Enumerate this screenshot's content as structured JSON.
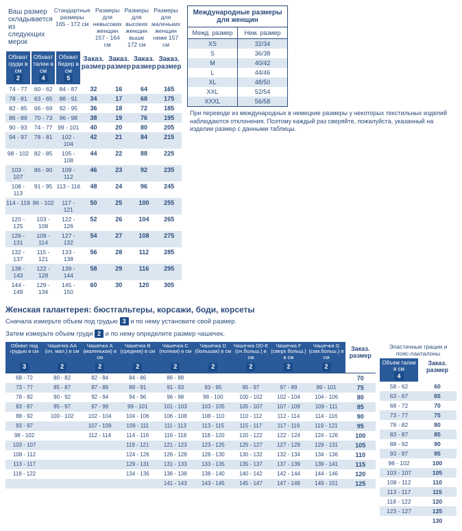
{
  "intro": "Ваш размер складывается из следующих мерок",
  "main": {
    "colgroups": [
      "Стандартные размеры\n165 - 172 см",
      "Размеры для невысоких женщин\n157 - 164 см",
      "Размеры для высоких женщин\nвыше 172 см",
      "Размеры для маленьких женщин\nниже 157 см"
    ],
    "order_label": "Заказ. размер",
    "measure_headers": [
      "Обхват груди в см",
      "Обхват талии в см",
      "Обхват бедер в см"
    ],
    "measure_badges": [
      "2",
      "4",
      "5"
    ],
    "rows": [
      [
        "74 - 77",
        "60 - 62",
        "84 - 87",
        "32",
        "16",
        "64",
        "165"
      ],
      [
        "78 - 81",
        "63 - 65",
        "88 - 91",
        "34",
        "17",
        "68",
        "175"
      ],
      [
        "82 - 85",
        "66 - 69",
        "92 - 95",
        "36",
        "18",
        "72",
        "185"
      ],
      [
        "86 - 89",
        "70 - 73",
        "96 - 98",
        "38",
        "19",
        "76",
        "195"
      ],
      [
        "90 - 93",
        "74 - 77",
        "99 - 101",
        "40",
        "20",
        "80",
        "205"
      ],
      [
        "94 - 97",
        "78 - 81",
        "102 - 104",
        "42",
        "21",
        "84",
        "215"
      ],
      [
        "98 - 102",
        "82 - 85",
        "105 - 108",
        "44",
        "22",
        "88",
        "225"
      ],
      [
        "103 - 107",
        "86 - 90",
        "109 - 112",
        "46",
        "23",
        "92",
        "235"
      ],
      [
        "108 - 113",
        "91 - 95",
        "113 - 116",
        "48",
        "24",
        "96",
        "245"
      ],
      [
        "114 - 119",
        "96 - 102",
        "117 - 121",
        "50",
        "25",
        "100",
        "255"
      ],
      [
        "120 - 125",
        "103 - 108",
        "122 - 126",
        "52",
        "26",
        "104",
        "265"
      ],
      [
        "126 - 131",
        "109 - 114",
        "127 - 132",
        "54",
        "27",
        "108",
        "275"
      ],
      [
        "132 - 137",
        "115 - 121",
        "133 - 138",
        "56",
        "28",
        "112",
        "285"
      ],
      [
        "138 - 143",
        "122 - 128",
        "139 - 144",
        "58",
        "29",
        "116",
        "295"
      ],
      [
        "144 - 149",
        "129 - 134",
        "145 - 150",
        "60",
        "30",
        "120",
        "305"
      ]
    ]
  },
  "intl": {
    "title": "Международные размеры для женщин",
    "h1": "Межд. размер",
    "h2": "Нем. размер",
    "rows": [
      [
        "XS",
        "32/34"
      ],
      [
        "S",
        "36/38"
      ],
      [
        "M",
        "40/42"
      ],
      [
        "L",
        "44/46"
      ],
      [
        "XL",
        "48/50"
      ],
      [
        "XXL",
        "52/54"
      ],
      [
        "XXXL",
        "56/58"
      ]
    ],
    "note": "При переводе из международных в немецкие размеры у некоторых текстильных изделий наблюдаются отклонения. Поэтому каждый раз сверяйте, пожалуйста, указанный на изделии размер с данными таблицы."
  },
  "section2": {
    "title": "Женская галантерея: бюстгальтеры, корсажи, боди, корсеты",
    "sub1_a": "Сначала измерьте объем под грудью ",
    "sub1_badge": "3",
    "sub1_b": " и по нему установите свой размер.",
    "sub2_a": "Затем измерьте объем груди ",
    "sub2_badge": "2",
    "sub2_b": " и по нему определите размер чашечек."
  },
  "bra": {
    "headers": [
      "Обхват под грудью в см",
      "Чашечка АА (оч. мал.) в см",
      "Чашечка А (маленькая) в см",
      "Чашечка В (средняя) в см",
      "Чашечка C (полная) в см",
      "Чашечка D (большая) в см",
      "Чашечка DD-Е (оч.больш.) в см",
      "Чашечка F (сверх больш.) в см",
      "Чашечка G (сам.больш.) в см"
    ],
    "badges": [
      "3",
      "2",
      "2",
      "2",
      "2",
      "2",
      "2",
      "2",
      "2"
    ],
    "order_label": "Заказ. размер",
    "rows": [
      [
        "68 - 72",
        "80 - 82",
        "82 - 84",
        "84 - 86",
        "86 - 88",
        "",
        "",
        "",
        "",
        "70"
      ],
      [
        "73 - 77",
        "85 - 87",
        "87 - 89",
        "89 - 91",
        "91 - 93",
        "93 - 95",
        "95 - 97",
        "97 - 99",
        "99 - 101",
        "75"
      ],
      [
        "78 - 82",
        "90 - 92",
        "92 - 94",
        "94 - 96",
        "96 - 98",
        "98 - 100",
        "100 - 102",
        "102 - 104",
        "104 - 106",
        "80"
      ],
      [
        "83 - 87",
        "95 - 97",
        "97 - 99",
        "99 - 101",
        "101 - 103",
        "103 - 105",
        "105 - 107",
        "107 - 109",
        "109 - 111",
        "85"
      ],
      [
        "88 - 92",
        "100 - 102",
        "102 - 104",
        "104 - 106",
        "106 - 108",
        "108 - 110",
        "110 - 112",
        "112 - 114",
        "114 - 116",
        "90"
      ],
      [
        "93 - 97",
        "",
        "107 - 109",
        "109 - 111",
        "111 - 113",
        "113 - 115",
        "115 - 117",
        "117 - 119",
        "119 - 121",
        "95"
      ],
      [
        "98 - 102",
        "",
        "112 - 114",
        "114 - 116",
        "116 - 118",
        "118 - 120",
        "120 - 122",
        "122 - 124",
        "124 - 126",
        "100"
      ],
      [
        "103 - 107",
        "",
        "",
        "119 - 121",
        "121 - 123",
        "123 - 125",
        "125 - 127",
        "127 - 129",
        "129 - 131",
        "105"
      ],
      [
        "108 - 112",
        "",
        "",
        "124 - 126",
        "126 - 128",
        "128 - 130",
        "130 - 132",
        "132 - 134",
        "134 - 136",
        "110"
      ],
      [
        "113 - 117",
        "",
        "",
        "129 - 131",
        "131 - 133",
        "133 - 135",
        "135 - 137",
        "137 - 139",
        "139 - 141",
        "115"
      ],
      [
        "118 - 122",
        "",
        "",
        "134 - 136",
        "136 - 138",
        "138 - 140",
        "140 - 142",
        "142 - 144",
        "144 - 146",
        "120"
      ],
      [
        "",
        "",
        "",
        "",
        "141 - 143",
        "143 - 145",
        "145 - 147",
        "147 - 149",
        "149 - 151",
        "125"
      ]
    ]
  },
  "elastic": {
    "title": "Эластичные грации и пояс-панталоны",
    "h1": "Объем талии в см",
    "h2": "Заказ. размер",
    "badge": "4",
    "rows": [
      [
        "58 - 62",
        "60"
      ],
      [
        "63 - 67",
        "65"
      ],
      [
        "68 - 72",
        "70"
      ],
      [
        "73 - 77",
        "75"
      ],
      [
        "78 - 82",
        "80"
      ],
      [
        "83 - 87",
        "85"
      ],
      [
        "88 - 92",
        "90"
      ],
      [
        "93 - 97",
        "95"
      ],
      [
        "98 - 102",
        "100"
      ],
      [
        "103 - 107",
        "105"
      ],
      [
        "108 - 112",
        "110"
      ],
      [
        "113 - 117",
        "115"
      ],
      [
        "118 - 122",
        "120"
      ],
      [
        "123 - 127",
        "125"
      ],
      [
        "",
        "130"
      ]
    ]
  }
}
